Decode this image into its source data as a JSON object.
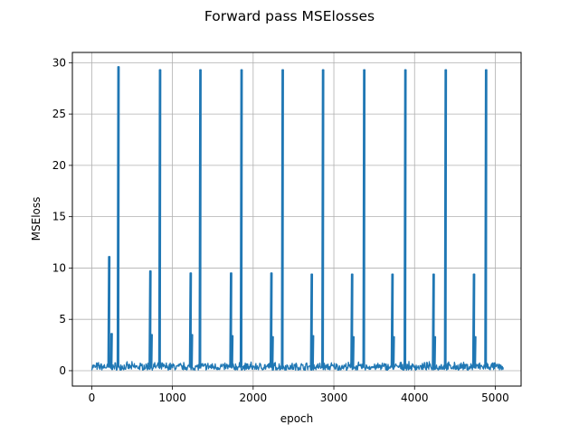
{
  "chart_data": {
    "type": "line",
    "title": "Forward pass MSElosses",
    "xlabel": "epoch",
    "ylabel": "MSEloss",
    "xlim": [
      -240,
      5320
    ],
    "ylim": [
      -1.5,
      31.0
    ],
    "xticks": [
      0,
      1000,
      2000,
      3000,
      4000,
      5000
    ],
    "xtick_labels": [
      "0",
      "1000",
      "2000",
      "3000",
      "4000",
      "5000"
    ],
    "yticks": [
      0,
      5,
      10,
      15,
      20,
      25,
      30
    ],
    "ytick_labels": [
      "0",
      "5",
      "10",
      "15",
      "20",
      "25",
      "30"
    ],
    "grid": true,
    "line_color": "#1f77b4",
    "x_max": 5100,
    "baseline": {
      "low": 0.05,
      "high": 0.9
    },
    "spikes": [
      {
        "x": 210,
        "y": 11.1
      },
      {
        "x": 240,
        "y": 3.6
      },
      {
        "x": 325,
        "y": 29.6
      },
      {
        "x": 720,
        "y": 9.7
      },
      {
        "x": 735,
        "y": 3.5
      },
      {
        "x": 840,
        "y": 29.3
      },
      {
        "x": 1220,
        "y": 9.5
      },
      {
        "x": 1235,
        "y": 3.5
      },
      {
        "x": 1340,
        "y": 29.3
      },
      {
        "x": 1720,
        "y": 9.5
      },
      {
        "x": 1735,
        "y": 3.4
      },
      {
        "x": 1850,
        "y": 29.3
      },
      {
        "x": 2220,
        "y": 9.5
      },
      {
        "x": 2235,
        "y": 3.3
      },
      {
        "x": 2360,
        "y": 29.3
      },
      {
        "x": 2720,
        "y": 9.4
      },
      {
        "x": 2735,
        "y": 3.4
      },
      {
        "x": 2860,
        "y": 29.3
      },
      {
        "x": 3220,
        "y": 9.4
      },
      {
        "x": 3235,
        "y": 3.3
      },
      {
        "x": 3370,
        "y": 29.3
      },
      {
        "x": 3720,
        "y": 9.4
      },
      {
        "x": 3735,
        "y": 3.3
      },
      {
        "x": 3880,
        "y": 29.3
      },
      {
        "x": 4230,
        "y": 9.4
      },
      {
        "x": 4245,
        "y": 3.3
      },
      {
        "x": 4380,
        "y": 29.3
      },
      {
        "x": 4730,
        "y": 9.4
      },
      {
        "x": 4745,
        "y": 3.3
      },
      {
        "x": 4880,
        "y": 29.3
      }
    ]
  }
}
